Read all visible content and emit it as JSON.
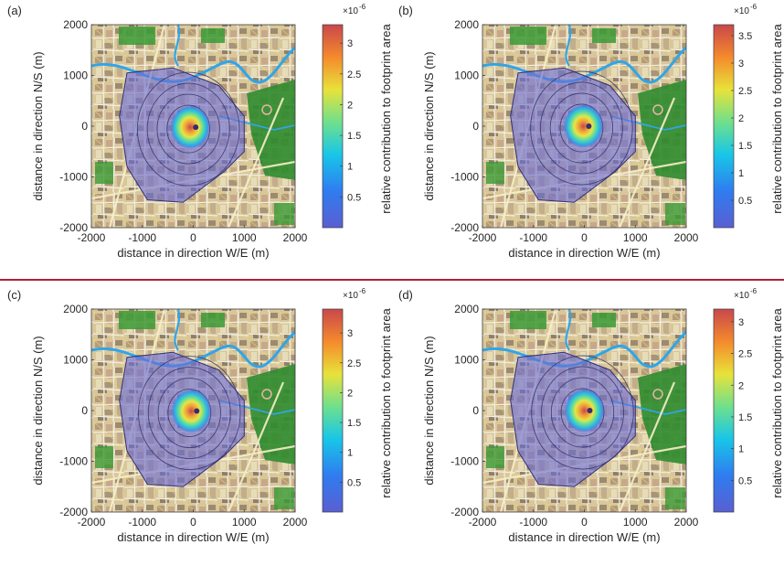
{
  "figure": {
    "divider_color": "#b0203a"
  },
  "chart_data": [
    {
      "type": "heatmap",
      "panel_label": "(a)",
      "xlabel": "distance in direction W/E (m)",
      "ylabel": "distance in direction N/S (m)",
      "x_ticks": [
        -2000,
        -1000,
        0,
        1000,
        2000
      ],
      "y_ticks": [
        2000,
        1000,
        0,
        -1000,
        -2000
      ],
      "xlim": [
        -2000,
        2000
      ],
      "ylim": [
        -2000,
        2000
      ],
      "colorbar": {
        "label": "relative contribution to footprint area",
        "exponent_label": "×10",
        "exponent_power": "-6",
        "ticks": [
          0.5,
          1,
          1.5,
          2,
          2.5,
          3
        ],
        "range": [
          0,
          3.3
        ]
      },
      "peak": {
        "x": -60,
        "y": -20,
        "value": 3.3
      },
      "contour_levels": [
        0.8,
        0.6,
        0.4,
        0.2
      ],
      "footprint_outline": [
        [
          -1300,
          1050
        ],
        [
          -400,
          1150
        ],
        [
          500,
          800
        ],
        [
          1000,
          200
        ],
        [
          1000,
          -500
        ],
        [
          600,
          -900
        ],
        [
          -200,
          -1500
        ],
        [
          -900,
          -1450
        ],
        [
          -1300,
          -800
        ],
        [
          -1450,
          200
        ]
      ]
    },
    {
      "type": "heatmap",
      "panel_label": "(b)",
      "xlabel": "distance in direction W/E (m)",
      "ylabel": "distance in direction N/S (m)",
      "x_ticks": [
        -2000,
        -1000,
        0,
        1000,
        2000
      ],
      "y_ticks": [
        2000,
        1000,
        0,
        -1000,
        -2000
      ],
      "xlim": [
        -2000,
        2000
      ],
      "ylim": [
        -2000,
        2000
      ],
      "colorbar": {
        "label": "relative contribution to footprint area",
        "exponent_label": "×10",
        "exponent_power": "-6",
        "ticks": [
          0.5,
          1,
          1.5,
          2,
          2.5,
          3,
          3.5
        ],
        "range": [
          0,
          3.7
        ]
      },
      "peak": {
        "x": -20,
        "y": 0,
        "value": 3.7
      },
      "contour_levels": [
        0.8,
        0.6,
        0.4,
        0.2
      ],
      "footprint_outline": [
        [
          -1300,
          1050
        ],
        [
          -400,
          1150
        ],
        [
          500,
          800
        ],
        [
          1000,
          200
        ],
        [
          1000,
          -500
        ],
        [
          600,
          -900
        ],
        [
          -200,
          -1500
        ],
        [
          -900,
          -1450
        ],
        [
          -1300,
          -800
        ],
        [
          -1450,
          200
        ]
      ]
    },
    {
      "type": "heatmap",
      "panel_label": "(c)",
      "xlabel": "distance in direction W/E (m)",
      "ylabel": "distance in direction N/S (m)",
      "x_ticks": [
        -2000,
        -1000,
        0,
        1000,
        2000
      ],
      "y_ticks": [
        2000,
        1000,
        0,
        -1000,
        -2000
      ],
      "xlim": [
        -2000,
        2000
      ],
      "ylim": [
        -2000,
        2000
      ],
      "colorbar": {
        "label": "relative contribution to footprint area",
        "exponent_label": "×10",
        "exponent_power": "-6",
        "ticks": [
          0.5,
          1,
          1.5,
          2,
          2.5,
          3
        ],
        "range": [
          0,
          3.4
        ]
      },
      "peak": {
        "x": -40,
        "y": -10,
        "value": 3.4
      },
      "contour_levels": [
        0.8,
        0.6,
        0.4,
        0.2
      ],
      "footprint_outline": [
        [
          -1300,
          1050
        ],
        [
          -400,
          1150
        ],
        [
          500,
          800
        ],
        [
          1000,
          200
        ],
        [
          1000,
          -500
        ],
        [
          600,
          -900
        ],
        [
          -200,
          -1500
        ],
        [
          -900,
          -1450
        ],
        [
          -1300,
          -800
        ],
        [
          -1450,
          200
        ]
      ]
    },
    {
      "type": "heatmap",
      "panel_label": "(d)",
      "xlabel": "distance in direction W/E (m)",
      "ylabel": "distance in direction N/S (m)",
      "x_ticks": [
        -2000,
        -1000,
        0,
        1000,
        2000
      ],
      "y_ticks": [
        2000,
        1000,
        0,
        -1000,
        -2000
      ],
      "xlim": [
        -2000,
        2000
      ],
      "ylim": [
        -2000,
        2000
      ],
      "colorbar": {
        "label": "relative contribution to footprint area",
        "exponent_label": "×10",
        "exponent_power": "-6",
        "ticks": [
          0.5,
          1,
          1.5,
          2,
          2.5,
          3
        ],
        "range": [
          0,
          3.2
        ]
      },
      "peak": {
        "x": 0,
        "y": 0,
        "value": 3.2
      },
      "contour_levels": [
        0.8,
        0.6,
        0.4,
        0.2
      ],
      "footprint_outline": [
        [
          -1300,
          1050
        ],
        [
          -400,
          1150
        ],
        [
          500,
          800
        ],
        [
          1000,
          200
        ],
        [
          1000,
          -500
        ],
        [
          600,
          -900
        ],
        [
          -200,
          -1500
        ],
        [
          -900,
          -1450
        ],
        [
          -1300,
          -800
        ],
        [
          -1450,
          200
        ]
      ]
    }
  ]
}
